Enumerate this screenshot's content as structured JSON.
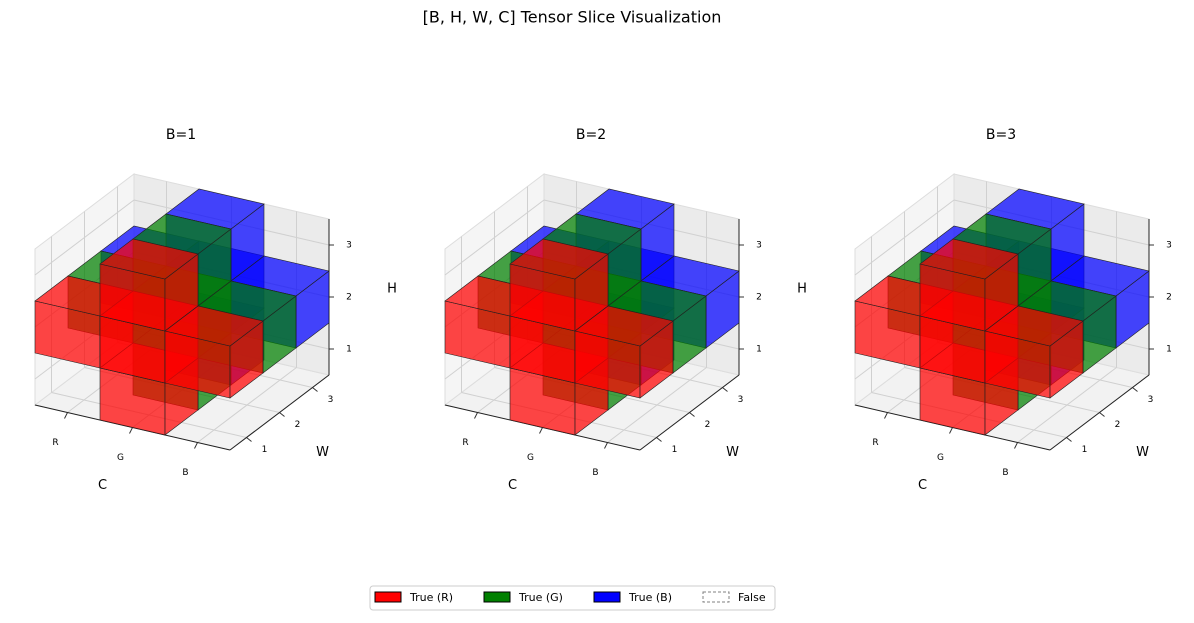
{
  "chart_data": {
    "type": "voxel",
    "title": "[B, H, W, C] Tensor Slice Visualization",
    "subplots": [
      {
        "title": "B=1",
        "xlabel": "C",
        "ylabel": "W",
        "zlabel": "H",
        "xcategories": [
          "R",
          "G",
          "B"
        ],
        "yticks": [
          1,
          2,
          3
        ],
        "zticks": [
          1,
          2,
          3
        ],
        "channels": [
          {
            "name": "True (R)",
            "color": "#ff0000",
            "voxels": [
              [
                1,
                0,
                0
              ],
              [
                0,
                0,
                1
              ],
              [
                1,
                0,
                1
              ],
              [
                2,
                0,
                1
              ],
              [
                1,
                0,
                2
              ]
            ]
          },
          {
            "name": "True (G)",
            "color": "#008000",
            "voxels": [
              [
                1,
                1,
                0
              ],
              [
                0,
                1,
                1
              ],
              [
                1,
                1,
                1
              ],
              [
                2,
                1,
                1
              ],
              [
                1,
                1,
                2
              ]
            ]
          },
          {
            "name": "True (B)",
            "color": "#0000ff",
            "voxels": [
              [
                1,
                2,
                0
              ],
              [
                0,
                2,
                1
              ],
              [
                1,
                2,
                1
              ],
              [
                2,
                2,
                1
              ],
              [
                1,
                2,
                2
              ]
            ]
          }
        ]
      },
      {
        "title": "B=2",
        "xlabel": "C",
        "ylabel": "W",
        "zlabel": "H",
        "xcategories": [
          "R",
          "G",
          "B"
        ],
        "yticks": [
          1,
          2,
          3
        ],
        "zticks": [
          1,
          2,
          3
        ],
        "channels": [
          {
            "name": "True (R)",
            "color": "#ff0000",
            "voxels": [
              [
                1,
                0,
                0
              ],
              [
                0,
                0,
                1
              ],
              [
                1,
                0,
                1
              ],
              [
                2,
                0,
                1
              ],
              [
                1,
                0,
                2
              ]
            ]
          },
          {
            "name": "True (G)",
            "color": "#008000",
            "voxels": [
              [
                1,
                1,
                0
              ],
              [
                0,
                1,
                1
              ],
              [
                1,
                1,
                1
              ],
              [
                2,
                1,
                1
              ],
              [
                1,
                1,
                2
              ]
            ]
          },
          {
            "name": "True (B)",
            "color": "#0000ff",
            "voxels": [
              [
                1,
                2,
                0
              ],
              [
                0,
                2,
                1
              ],
              [
                1,
                2,
                1
              ],
              [
                2,
                2,
                1
              ],
              [
                1,
                2,
                2
              ]
            ]
          }
        ]
      },
      {
        "title": "B=3",
        "xlabel": "C",
        "ylabel": "W",
        "zlabel": "H",
        "xcategories": [
          "R",
          "G",
          "B"
        ],
        "yticks": [
          1,
          2,
          3
        ],
        "zticks": [
          1,
          2,
          3
        ],
        "channels": [
          {
            "name": "True (R)",
            "color": "#ff0000",
            "voxels": [
              [
                1,
                0,
                0
              ],
              [
                0,
                0,
                1
              ],
              [
                1,
                0,
                1
              ],
              [
                2,
                0,
                1
              ],
              [
                1,
                0,
                2
              ]
            ]
          },
          {
            "name": "True (G)",
            "color": "#008000",
            "voxels": [
              [
                1,
                1,
                0
              ],
              [
                0,
                1,
                1
              ],
              [
                1,
                1,
                1
              ],
              [
                2,
                1,
                1
              ],
              [
                1,
                1,
                2
              ]
            ]
          },
          {
            "name": "True (B)",
            "color": "#0000ff",
            "voxels": [
              [
                1,
                2,
                0
              ],
              [
                0,
                2,
                1
              ],
              [
                1,
                2,
                1
              ],
              [
                2,
                2,
                1
              ],
              [
                1,
                2,
                2
              ]
            ]
          }
        ]
      }
    ],
    "legend": [
      {
        "name": "True (R)",
        "color": "#ff0000"
      },
      {
        "name": "True (G)",
        "color": "#008000"
      },
      {
        "name": "True (B)",
        "color": "#0000ff"
      },
      {
        "name": "False",
        "color": "#808080",
        "dashed": true
      }
    ]
  }
}
